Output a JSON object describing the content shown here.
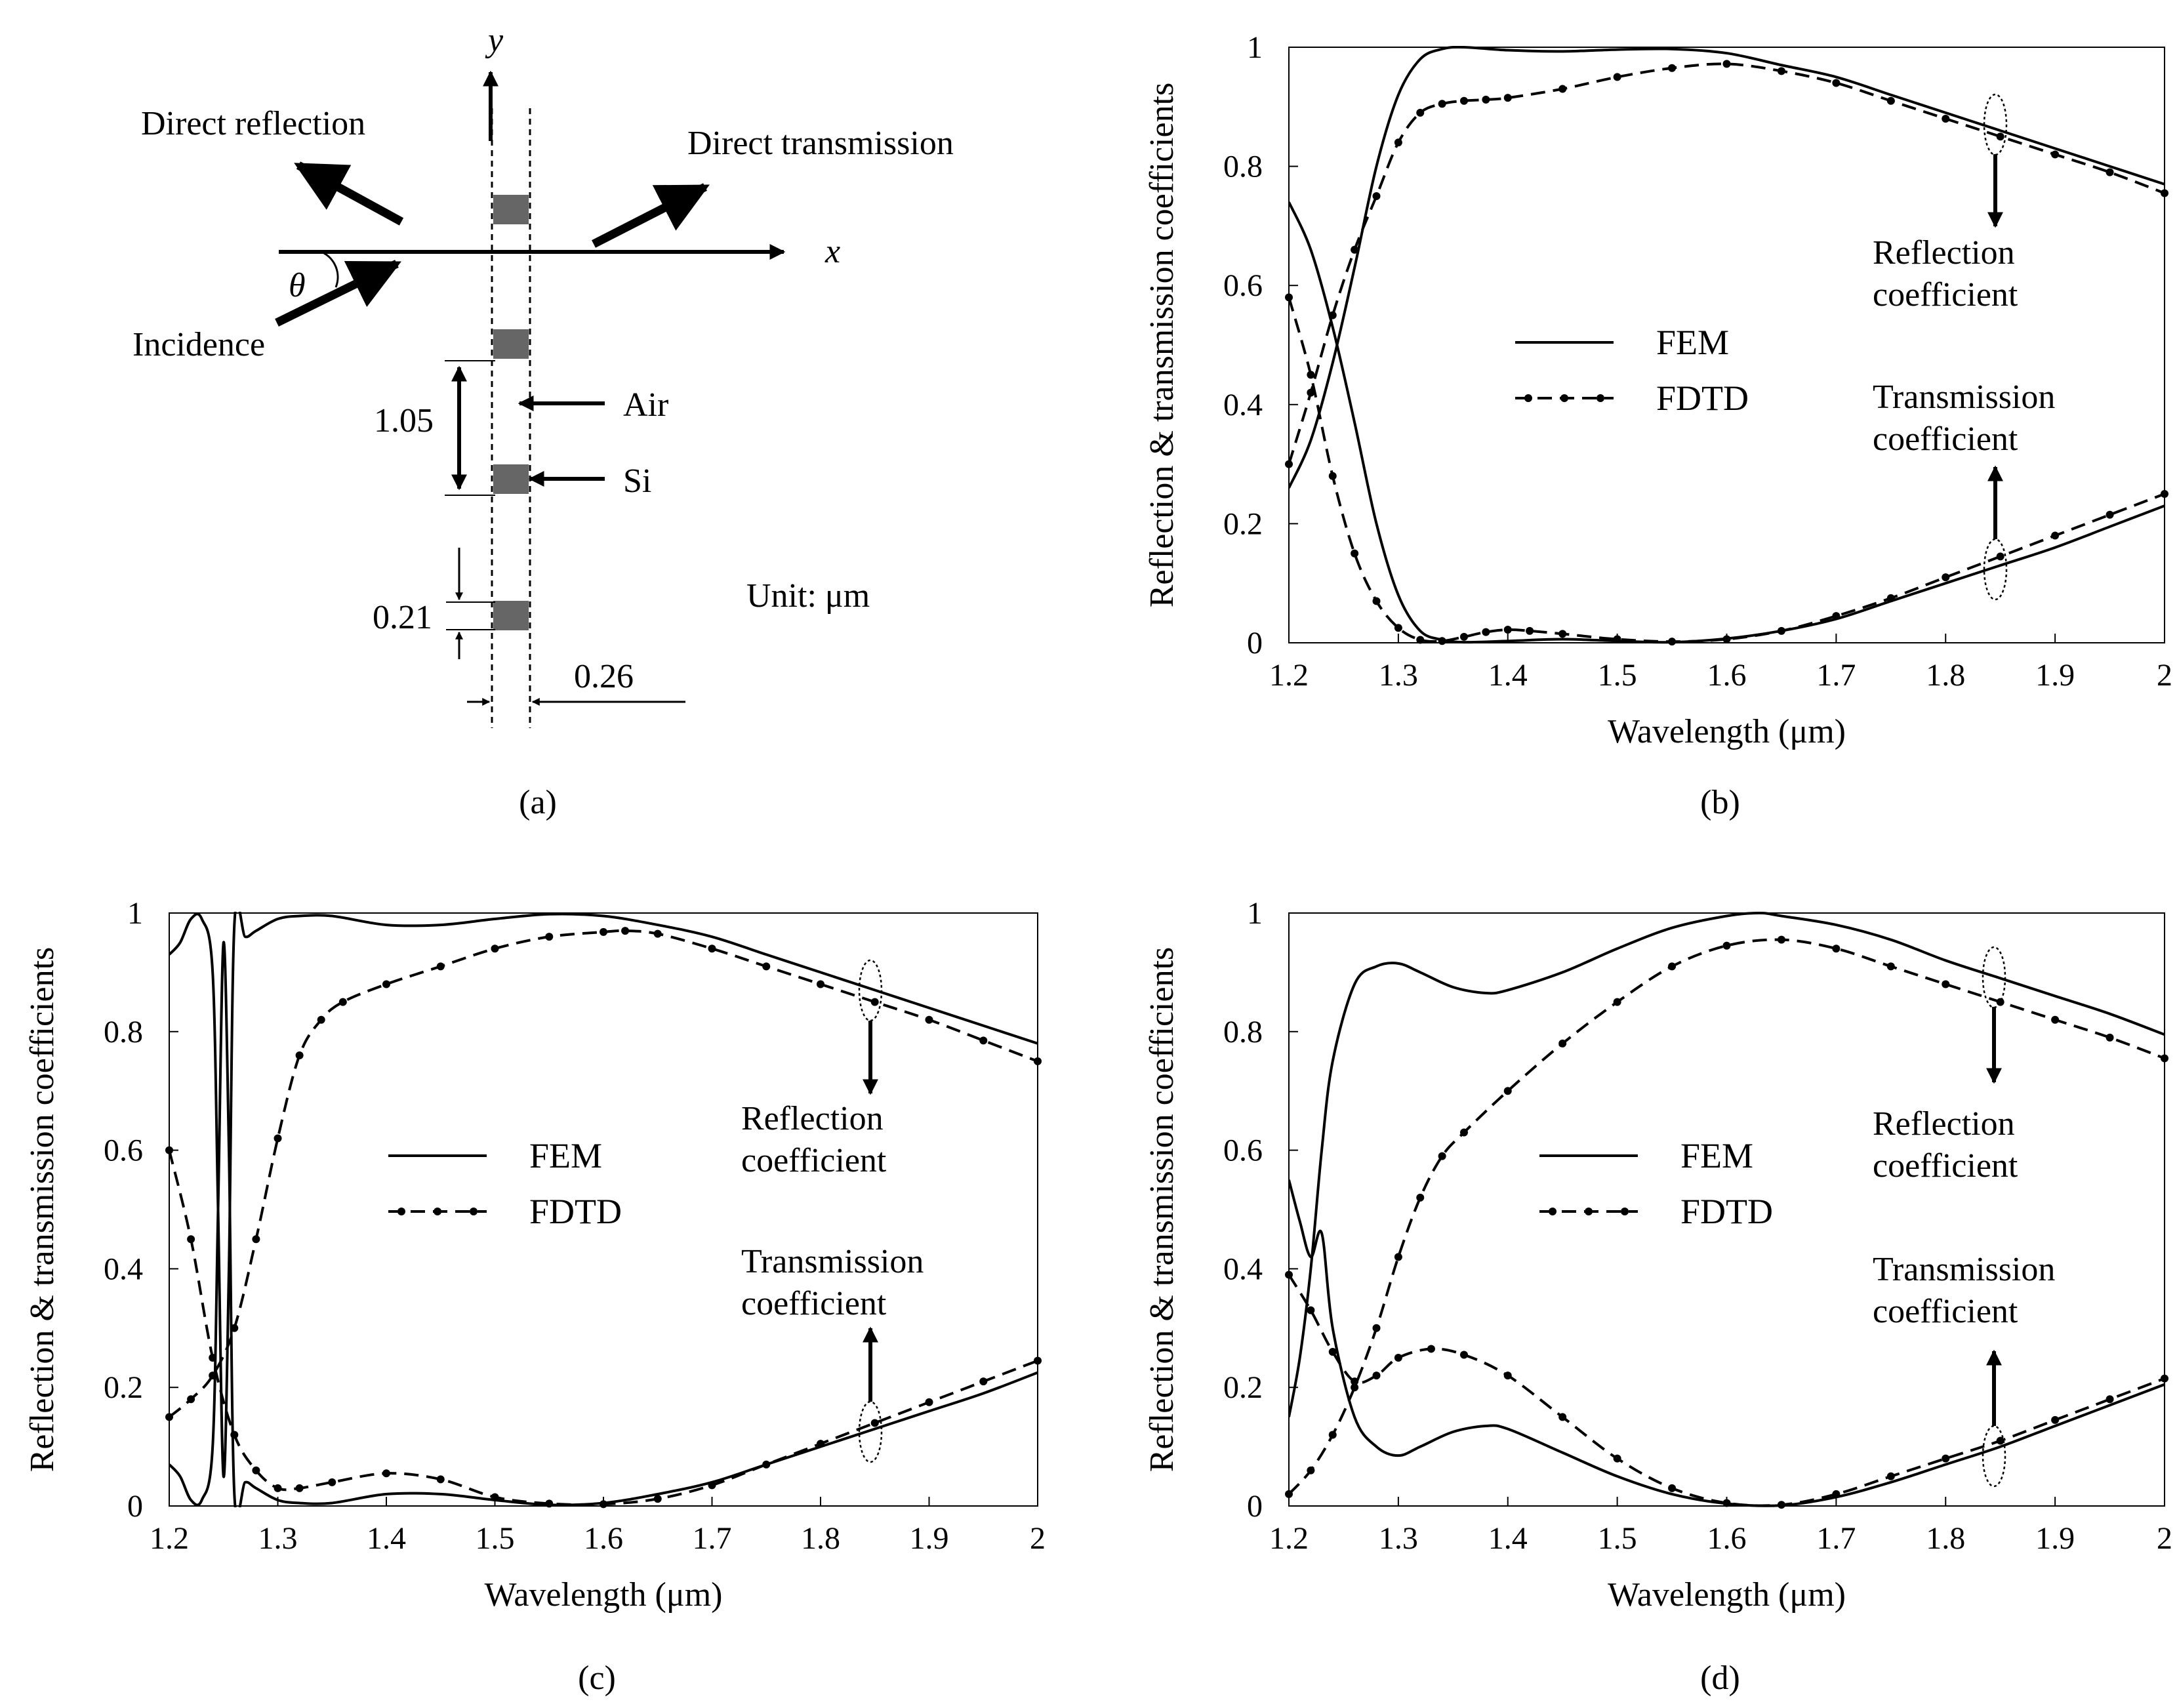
{
  "figure": {
    "diagram": {
      "y_axis": "y",
      "x_axis": "x",
      "angle": "θ",
      "direct_reflection": "Direct reflection",
      "direct_transmission": "Direct transmission",
      "incidence": "Incidence",
      "air": "Air",
      "si": "Si",
      "dim_period": "1.05",
      "dim_height": "0.21",
      "dim_width": "0.26",
      "unit": "Unit: μm",
      "panel": "(a)"
    }
  },
  "chart_data": [
    {
      "id": "b",
      "type": "line",
      "panel_label": "(b)",
      "xlabel": "Wavelength (μm)",
      "ylabel": "Reflection & transmission coefficients",
      "xlim": [
        1.2,
        2.0
      ],
      "ylim": [
        0,
        1
      ],
      "xticks": [
        "1.2",
        "1.3",
        "1.4",
        "1.5",
        "1.6",
        "1.7",
        "1.8",
        "1.9",
        "2"
      ],
      "yticks": [
        "0",
        "0.2",
        "0.4",
        "0.6",
        "0.8",
        "1"
      ],
      "legend": [
        "FEM",
        "FDTD"
      ],
      "annotations": {
        "reflection": [
          "Reflection",
          "coefficient"
        ],
        "transmission": [
          "Transmission",
          "coefficient"
        ]
      },
      "series": [
        {
          "name": "FEM reflection",
          "style": "solid",
          "x": [
            1.2,
            1.22,
            1.24,
            1.26,
            1.28,
            1.3,
            1.32,
            1.34,
            1.36,
            1.4,
            1.45,
            1.5,
            1.55,
            1.6,
            1.65,
            1.7,
            1.75,
            1.8,
            1.85,
            1.9,
            1.95,
            2.0
          ],
          "y": [
            0.26,
            0.34,
            0.47,
            0.63,
            0.8,
            0.92,
            0.98,
            0.997,
            1.0,
            0.995,
            0.993,
            0.996,
            0.997,
            0.99,
            0.97,
            0.95,
            0.92,
            0.89,
            0.86,
            0.83,
            0.8,
            0.77
          ]
        },
        {
          "name": "FDTD reflection",
          "style": "dashed",
          "x": [
            1.2,
            1.22,
            1.24,
            1.26,
            1.28,
            1.3,
            1.32,
            1.34,
            1.36,
            1.38,
            1.4,
            1.45,
            1.5,
            1.55,
            1.6,
            1.65,
            1.7,
            1.75,
            1.8,
            1.85,
            1.9,
            1.95,
            2.0
          ],
          "y": [
            0.3,
            0.42,
            0.55,
            0.66,
            0.75,
            0.84,
            0.89,
            0.905,
            0.91,
            0.912,
            0.915,
            0.93,
            0.95,
            0.965,
            0.972,
            0.96,
            0.94,
            0.91,
            0.88,
            0.85,
            0.82,
            0.79,
            0.755
          ]
        },
        {
          "name": "FEM transmission",
          "style": "solid",
          "x": [
            1.2,
            1.22,
            1.24,
            1.26,
            1.28,
            1.3,
            1.32,
            1.34,
            1.36,
            1.4,
            1.45,
            1.5,
            1.55,
            1.6,
            1.65,
            1.7,
            1.75,
            1.8,
            1.85,
            1.9,
            1.95,
            2.0
          ],
          "y": [
            0.74,
            0.66,
            0.53,
            0.37,
            0.2,
            0.08,
            0.02,
            0.005,
            0.001,
            0.003,
            0.006,
            0.003,
            0.001,
            0.007,
            0.02,
            0.04,
            0.07,
            0.1,
            0.13,
            0.16,
            0.195,
            0.23
          ]
        },
        {
          "name": "FDTD transmission",
          "style": "dashed",
          "x": [
            1.2,
            1.22,
            1.24,
            1.26,
            1.28,
            1.3,
            1.32,
            1.34,
            1.36,
            1.38,
            1.4,
            1.42,
            1.45,
            1.5,
            1.55,
            1.6,
            1.65,
            1.7,
            1.75,
            1.8,
            1.85,
            1.9,
            1.95,
            2.0
          ],
          "y": [
            0.58,
            0.45,
            0.28,
            0.15,
            0.07,
            0.025,
            0.005,
            0.003,
            0.01,
            0.018,
            0.022,
            0.02,
            0.015,
            0.006,
            0.002,
            0.006,
            0.02,
            0.045,
            0.075,
            0.11,
            0.145,
            0.18,
            0.215,
            0.25
          ]
        }
      ]
    },
    {
      "id": "c",
      "type": "line",
      "panel_label": "(c)",
      "xlabel": "Wavelength (μm)",
      "ylabel": "Reflection & transmission coefficients",
      "xlim": [
        1.2,
        2.0
      ],
      "ylim": [
        0,
        1
      ],
      "xticks": [
        "1.2",
        "1.3",
        "1.4",
        "1.5",
        "1.6",
        "1.7",
        "1.8",
        "1.9",
        "2"
      ],
      "yticks": [
        "0",
        "0.2",
        "0.4",
        "0.6",
        "0.8",
        "1"
      ],
      "legend": [
        "FEM",
        "FDTD"
      ],
      "annotations": {
        "reflection": [
          "Reflection",
          "coefficient"
        ],
        "transmission": [
          "Transmission",
          "coefficient"
        ]
      },
      "series": [
        {
          "name": "FEM reflection",
          "style": "solid",
          "x": [
            1.2,
            1.21,
            1.22,
            1.23,
            1.24,
            1.245,
            1.25,
            1.255,
            1.26,
            1.27,
            1.28,
            1.3,
            1.32,
            1.35,
            1.4,
            1.45,
            1.5,
            1.55,
            1.6,
            1.65,
            1.7,
            1.75,
            1.8,
            1.85,
            1.9,
            1.95,
            2.0
          ],
          "y": [
            0.93,
            0.95,
            0.99,
            0.99,
            0.9,
            0.5,
            0.05,
            0.4,
            0.98,
            0.96,
            0.97,
            0.99,
            0.995,
            0.995,
            0.98,
            0.98,
            0.99,
            0.998,
            0.995,
            0.98,
            0.96,
            0.93,
            0.9,
            0.87,
            0.84,
            0.81,
            0.78
          ]
        },
        {
          "name": "FDTD reflection",
          "style": "dashed",
          "x": [
            1.2,
            1.22,
            1.24,
            1.26,
            1.28,
            1.3,
            1.32,
            1.34,
            1.36,
            1.4,
            1.45,
            1.5,
            1.55,
            1.6,
            1.62,
            1.65,
            1.7,
            1.75,
            1.8,
            1.85,
            1.9,
            1.95,
            2.0
          ],
          "y": [
            0.15,
            0.18,
            0.22,
            0.3,
            0.45,
            0.62,
            0.76,
            0.82,
            0.85,
            0.88,
            0.91,
            0.94,
            0.96,
            0.968,
            0.97,
            0.965,
            0.94,
            0.91,
            0.88,
            0.85,
            0.82,
            0.785,
            0.75
          ]
        },
        {
          "name": "FEM transmission",
          "style": "solid",
          "x": [
            1.2,
            1.21,
            1.22,
            1.23,
            1.24,
            1.245,
            1.25,
            1.255,
            1.26,
            1.27,
            1.28,
            1.3,
            1.32,
            1.35,
            1.4,
            1.45,
            1.5,
            1.55,
            1.6,
            1.65,
            1.7,
            1.75,
            1.8,
            1.85,
            1.9,
            1.95,
            2.0
          ],
          "y": [
            0.07,
            0.05,
            0.01,
            0.01,
            0.1,
            0.5,
            0.95,
            0.6,
            0.02,
            0.04,
            0.03,
            0.01,
            0.005,
            0.005,
            0.02,
            0.02,
            0.01,
            0.002,
            0.005,
            0.02,
            0.04,
            0.07,
            0.1,
            0.13,
            0.16,
            0.19,
            0.225
          ]
        },
        {
          "name": "FDTD transmission",
          "style": "dashed",
          "x": [
            1.2,
            1.22,
            1.24,
            1.26,
            1.28,
            1.3,
            1.32,
            1.35,
            1.4,
            1.45,
            1.5,
            1.55,
            1.6,
            1.65,
            1.7,
            1.75,
            1.8,
            1.85,
            1.9,
            1.95,
            2.0
          ],
          "y": [
            0.6,
            0.45,
            0.25,
            0.12,
            0.06,
            0.03,
            0.03,
            0.04,
            0.055,
            0.045,
            0.015,
            0.004,
            0.003,
            0.012,
            0.035,
            0.07,
            0.105,
            0.14,
            0.175,
            0.21,
            0.245
          ]
        }
      ]
    },
    {
      "id": "d",
      "type": "line",
      "panel_label": "(d)",
      "xlabel": "Wavelength (μm)",
      "ylabel": "Reflection & transmission coefficients",
      "xlim": [
        1.2,
        2.0
      ],
      "ylim": [
        0,
        1
      ],
      "xticks": [
        "1.2",
        "1.3",
        "1.4",
        "1.5",
        "1.6",
        "1.7",
        "1.8",
        "1.9",
        "2"
      ],
      "yticks": [
        "0",
        "0.2",
        "0.4",
        "0.6",
        "0.8",
        "1"
      ],
      "legend": [
        "FEM",
        "FDTD"
      ],
      "annotations": {
        "reflection": [
          "Reflection",
          "coefficient"
        ],
        "transmission": [
          "Transmission",
          "coefficient"
        ]
      },
      "series": [
        {
          "name": "FEM reflection",
          "style": "solid",
          "x": [
            1.2,
            1.21,
            1.22,
            1.23,
            1.24,
            1.26,
            1.28,
            1.3,
            1.32,
            1.35,
            1.38,
            1.4,
            1.45,
            1.5,
            1.55,
            1.6,
            1.63,
            1.65,
            1.7,
            1.75,
            1.8,
            1.85,
            1.9,
            1.95,
            2.0
          ],
          "y": [
            0.15,
            0.25,
            0.4,
            0.6,
            0.75,
            0.88,
            0.91,
            0.915,
            0.9,
            0.875,
            0.865,
            0.87,
            0.9,
            0.94,
            0.975,
            0.995,
            1.0,
            0.995,
            0.98,
            0.955,
            0.92,
            0.89,
            0.86,
            0.83,
            0.795
          ]
        },
        {
          "name": "FDTD reflection",
          "style": "dashed",
          "x": [
            1.2,
            1.22,
            1.24,
            1.26,
            1.28,
            1.3,
            1.32,
            1.34,
            1.36,
            1.4,
            1.45,
            1.5,
            1.55,
            1.6,
            1.65,
            1.7,
            1.75,
            1.8,
            1.85,
            1.9,
            1.95,
            2.0
          ],
          "y": [
            0.02,
            0.06,
            0.12,
            0.2,
            0.3,
            0.42,
            0.52,
            0.59,
            0.63,
            0.7,
            0.78,
            0.85,
            0.91,
            0.945,
            0.955,
            0.94,
            0.91,
            0.88,
            0.85,
            0.82,
            0.79,
            0.755
          ]
        },
        {
          "name": "FEM transmission",
          "style": "solid",
          "x": [
            1.2,
            1.21,
            1.22,
            1.23,
            1.24,
            1.26,
            1.28,
            1.3,
            1.32,
            1.35,
            1.38,
            1.4,
            1.45,
            1.5,
            1.55,
            1.6,
            1.65,
            1.7,
            1.75,
            1.8,
            1.85,
            1.9,
            1.95,
            2.0
          ],
          "y": [
            0.55,
            0.48,
            0.42,
            0.46,
            0.3,
            0.15,
            0.1,
            0.085,
            0.1,
            0.125,
            0.135,
            0.13,
            0.09,
            0.05,
            0.02,
            0.004,
            0.001,
            0.015,
            0.04,
            0.07,
            0.1,
            0.135,
            0.17,
            0.205
          ]
        },
        {
          "name": "FDTD transmission",
          "style": "dashed",
          "x": [
            1.2,
            1.22,
            1.24,
            1.26,
            1.28,
            1.3,
            1.33,
            1.36,
            1.4,
            1.45,
            1.5,
            1.55,
            1.6,
            1.65,
            1.7,
            1.75,
            1.8,
            1.85,
            1.9,
            1.95,
            2.0
          ],
          "y": [
            0.39,
            0.33,
            0.26,
            0.21,
            0.22,
            0.25,
            0.265,
            0.255,
            0.22,
            0.15,
            0.08,
            0.03,
            0.005,
            0.002,
            0.02,
            0.05,
            0.08,
            0.11,
            0.145,
            0.18,
            0.215
          ]
        }
      ]
    }
  ]
}
